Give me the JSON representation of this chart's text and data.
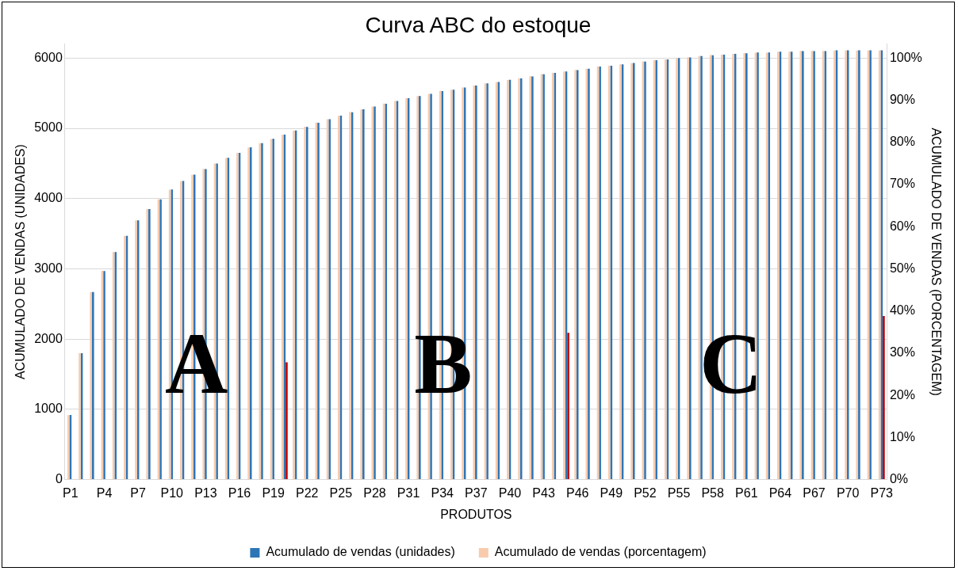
{
  "chart_data": {
    "type": "bar",
    "title": "Curva ABC do estoque",
    "xlabel": "PRODUTOS",
    "ylabel": "ACUMULADO DE VENDAS (UNIDADES)",
    "y2label": "ACUMULADO DE VENDAS (PORCENTAGEM)",
    "categories": [
      "P1",
      null,
      null,
      "P4",
      null,
      null,
      "P7",
      null,
      null,
      "P10",
      null,
      null,
      "P13",
      null,
      null,
      "P16",
      null,
      null,
      "P19",
      null,
      null,
      "P22",
      null,
      null,
      "P25",
      null,
      null,
      "P28",
      null,
      null,
      "P31",
      null,
      null,
      "P34",
      null,
      null,
      "P37",
      null,
      null,
      "P40",
      null,
      null,
      "P43",
      null,
      null,
      "P46",
      null,
      null,
      "P49",
      null,
      null,
      "P52",
      null,
      null,
      "P55",
      null,
      null,
      "P58",
      null,
      null,
      "P61",
      null,
      null,
      "P64",
      null,
      null,
      "P67",
      null,
      null,
      "P70",
      null,
      null,
      "P73"
    ],
    "series": [
      {
        "name": "Acumulado de vendas (unidades)",
        "color": "#2e75b6",
        "values": [
          920,
          1800,
          2670,
          2970,
          3240,
          3470,
          3690,
          3850,
          3990,
          4130,
          4250,
          4340,
          4420,
          4500,
          4580,
          4650,
          4730,
          4790,
          4850,
          4910,
          4970,
          5020,
          5080,
          5130,
          5180,
          5230,
          5270,
          5310,
          5350,
          5390,
          5430,
          5460,
          5490,
          5530,
          5550,
          5580,
          5610,
          5640,
          5660,
          5690,
          5710,
          5740,
          5770,
          5790,
          5810,
          5830,
          5850,
          5880,
          5890,
          5910,
          5930,
          5950,
          5970,
          5980,
          6000,
          6010,
          6030,
          6040,
          6050,
          6060,
          6070,
          6080,
          6080,
          6090,
          6090,
          6100,
          6100,
          6100,
          6110,
          6110,
          6110,
          6110,
          6110
        ]
      },
      {
        "name": "Acumulado de vendas (porcentagem)",
        "color": "#f8cbad",
        "axis": "y2",
        "values": [
          15.3,
          30.0,
          44.5,
          49.5,
          54.0,
          57.8,
          61.5,
          64.2,
          66.5,
          68.8,
          70.8,
          72.3,
          73.7,
          75.0,
          76.3,
          77.5,
          78.8,
          79.8,
          80.8,
          81.8,
          82.8,
          83.7,
          84.7,
          85.5,
          86.3,
          87.2,
          87.8,
          88.5,
          89.2,
          89.8,
          90.5,
          91.0,
          91.5,
          92.2,
          92.5,
          93.0,
          93.5,
          94.0,
          94.3,
          94.8,
          95.2,
          95.7,
          96.2,
          96.5,
          96.8,
          97.2,
          97.5,
          98.0,
          98.2,
          98.5,
          98.8,
          99.2,
          99.5,
          99.7,
          100.0,
          100.2,
          100.5,
          100.7,
          100.8,
          101.0,
          101.2,
          101.3,
          101.3,
          101.5,
          101.5,
          101.7,
          101.7,
          101.7,
          101.8,
          101.8,
          101.8,
          101.8,
          101.8
        ]
      },
      {
        "color": "#c00000",
        "values": [
          null,
          null,
          null,
          null,
          null,
          null,
          null,
          null,
          null,
          null,
          null,
          null,
          null,
          null,
          null,
          null,
          null,
          null,
          null,
          1670,
          null,
          null,
          null,
          null,
          null,
          null,
          null,
          null,
          null,
          null,
          null,
          null,
          null,
          null,
          null,
          null,
          null,
          null,
          null,
          null,
          null,
          null,
          null,
          null,
          2090,
          null,
          null,
          null,
          null,
          null,
          null,
          null,
          null,
          null,
          null,
          null,
          null,
          null,
          null,
          null,
          null,
          null,
          null,
          null,
          null,
          null,
          null,
          null,
          null,
          null,
          null,
          null,
          2330
        ]
      }
    ],
    "ylim": [
      0,
      6200
    ],
    "yticks": [
      0,
      1000,
      2000,
      3000,
      4000,
      5000,
      6000
    ],
    "y2lim": [
      0,
      103.33
    ],
    "y2ticks": [
      {
        "value": 0,
        "label": "0%"
      },
      {
        "value": 10,
        "label": "10%"
      },
      {
        "value": 20,
        "label": "20%"
      },
      {
        "value": 30,
        "label": "30%"
      },
      {
        "value": 40,
        "label": "40%"
      },
      {
        "value": 50,
        "label": "50%"
      },
      {
        "value": 60,
        "label": "60%"
      },
      {
        "value": 70,
        "label": "70%"
      },
      {
        "value": 80,
        "label": "80%"
      },
      {
        "value": 90,
        "label": "90%"
      },
      {
        "value": 100,
        "label": "100%"
      }
    ],
    "grid": "y",
    "legend": "bottom",
    "annotations": [
      "A",
      "B",
      "C"
    ]
  }
}
